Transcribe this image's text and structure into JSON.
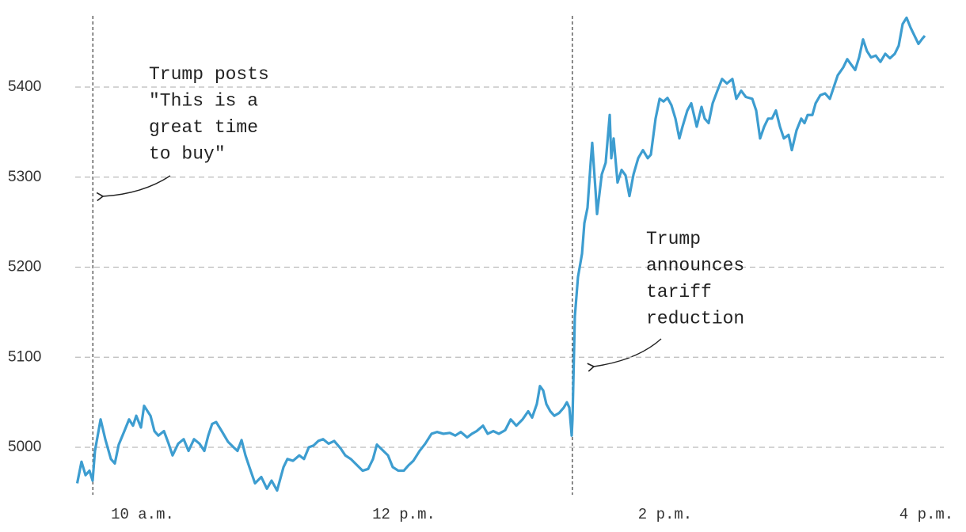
{
  "chart_data": {
    "type": "line",
    "x": [
      9.5,
      9.533,
      9.564,
      9.594,
      9.618,
      9.636,
      9.679,
      9.715,
      9.758,
      9.788,
      9.818,
      9.861,
      9.897,
      9.927,
      9.952,
      9.988,
      10.012,
      10.061,
      10.091,
      10.121,
      10.164,
      10.2,
      10.23,
      10.273,
      10.315,
      10.352,
      10.394,
      10.436,
      10.473,
      10.503,
      10.533,
      10.564,
      10.606,
      10.655,
      10.697,
      10.727,
      10.758,
      10.788,
      10.818,
      10.861,
      10.909,
      10.952,
      10.988,
      11.03,
      11.079,
      11.109,
      11.152,
      11.2,
      11.236,
      11.273,
      11.309,
      11.345,
      11.382,
      11.424,
      11.467,
      11.515,
      11.552,
      11.594,
      11.636,
      11.685,
      11.727,
      11.764,
      11.794,
      11.836,
      11.879,
      11.915,
      11.958,
      12.0,
      12.036,
      12.073,
      12.121,
      12.164,
      12.212,
      12.255,
      12.303,
      12.352,
      12.394,
      12.436,
      12.485,
      12.521,
      12.558,
      12.606,
      12.642,
      12.685,
      12.727,
      12.776,
      12.818,
      12.861,
      12.909,
      12.952,
      12.982,
      13.018,
      13.042,
      13.067,
      13.091,
      13.121,
      13.152,
      13.188,
      13.224,
      13.248,
      13.267,
      13.285,
      13.291,
      13.309,
      13.333,
      13.364,
      13.382,
      13.406,
      13.43,
      13.442,
      13.467,
      13.479,
      13.515,
      13.545,
      13.576,
      13.588,
      13.606,
      13.636,
      13.667,
      13.697,
      13.727,
      13.758,
      13.794,
      13.83,
      13.867,
      13.891,
      13.927,
      13.958,
      13.988,
      14.018,
      14.048,
      14.079,
      14.109,
      14.133,
      14.17,
      14.2,
      14.242,
      14.279,
      14.303,
      14.333,
      14.364,
      14.4,
      14.436,
      14.473,
      14.515,
      14.545,
      14.582,
      14.618,
      14.667,
      14.697,
      14.727,
      14.758,
      14.788,
      14.818,
      14.848,
      14.879,
      14.909,
      14.945,
      14.97,
      15.006,
      15.042,
      15.067,
      15.091,
      15.127,
      15.152,
      15.188,
      15.224,
      15.261,
      15.291,
      15.321,
      15.364,
      15.394,
      15.424,
      15.455,
      15.485,
      15.515,
      15.545,
      15.576,
      15.612,
      15.648,
      15.685,
      15.721,
      15.758,
      15.788,
      15.818,
      15.848,
      15.879,
      15.909,
      15.939,
      15.97,
      15.988
    ],
    "series": [
      {
        "color": "#3d9dd0",
        "values": [
          4960,
          4984,
          4969,
          4974,
          4963,
          4996,
          5031,
          5009,
          4987,
          4982,
          5003,
          5018,
          5031,
          5024,
          5035,
          5022,
          5046,
          5035,
          5018,
          5013,
          5018,
          5004,
          4991,
          5004,
          5009,
          4996,
          5009,
          5004,
          4996,
          5013,
          5026,
          5028,
          5018,
          5006,
          5000,
          4996,
          5008,
          4991,
          4978,
          4960,
          4967,
          4954,
          4963,
          4952,
          4978,
          4987,
          4985,
          4991,
          4987,
          5000,
          5002,
          5007,
          5009,
          5004,
          5007,
          4999,
          4991,
          4987,
          4981,
          4974,
          4976,
          4987,
          5003,
          4997,
          4991,
          4978,
          4974,
          4974,
          4980,
          4985,
          4996,
          5004,
          5015,
          5017,
          5015,
          5016,
          5013,
          5017,
          5011,
          5015,
          5018,
          5024,
          5015,
          5018,
          5015,
          5019,
          5031,
          5024,
          5031,
          5040,
          5033,
          5048,
          5068,
          5063,
          5048,
          5040,
          5035,
          5038,
          5044,
          5050,
          5044,
          5013,
          5031,
          5145,
          5189,
          5215,
          5249,
          5266,
          5316,
          5338,
          5286,
          5259,
          5303,
          5316,
          5369,
          5321,
          5343,
          5294,
          5308,
          5302,
          5279,
          5303,
          5321,
          5330,
          5321,
          5325,
          5365,
          5387,
          5384,
          5388,
          5380,
          5365,
          5343,
          5356,
          5374,
          5382,
          5356,
          5378,
          5365,
          5360,
          5382,
          5396,
          5409,
          5404,
          5409,
          5387,
          5396,
          5389,
          5387,
          5374,
          5343,
          5356,
          5365,
          5365,
          5374,
          5356,
          5343,
          5347,
          5330,
          5352,
          5365,
          5360,
          5369,
          5369,
          5382,
          5391,
          5393,
          5387,
          5400,
          5413,
          5422,
          5431,
          5425,
          5419,
          5433,
          5453,
          5440,
          5433,
          5435,
          5428,
          5437,
          5432,
          5437,
          5446,
          5470,
          5477,
          5466,
          5457,
          5448,
          5454,
          5457
        ]
      }
    ],
    "xlim": [
      9.5,
      16
    ],
    "xticks": [
      {
        "value": 10,
        "label": "10 a.m."
      },
      {
        "value": 12,
        "label": "12 p.m."
      },
      {
        "value": 14,
        "label": "2 p.m."
      },
      {
        "value": 16,
        "label": "4 p.m."
      }
    ],
    "ylim": [
      4950,
      5490
    ],
    "yticks": [
      5000,
      5100,
      5200,
      5300,
      5400
    ],
    "grid": true,
    "annotations": [
      {
        "x": 9.62,
        "lines": [
          "Trump posts",
          "\"This is a",
          "great time",
          "to buy\""
        ]
      },
      {
        "x": 13.29,
        "lines": [
          "Trump",
          "announces",
          "tariff",
          "reduction"
        ]
      }
    ]
  }
}
